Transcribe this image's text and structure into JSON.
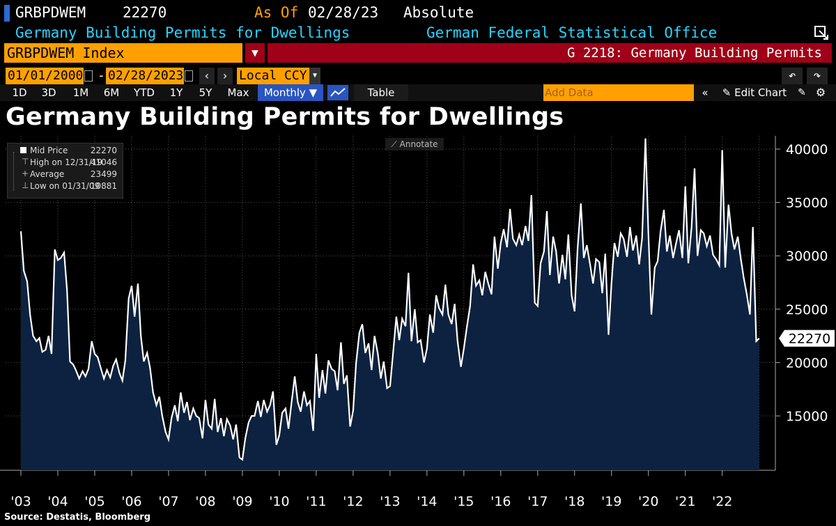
{
  "header": {
    "ticker": "GRBPDWEM",
    "value": "22270",
    "as_of_label": "As Of",
    "as_of_date": "02/28/23",
    "mode": "Absolute",
    "series_name": "Germany Building Permits for Dwellings",
    "source_agency": "German Federal Statistical Office",
    "index_name": "GRBPDWEM Index",
    "chart_id": "G 2218: Germany Building Permits"
  },
  "controls": {
    "start_date": "01/01/2000",
    "end_date": "02/28/2023",
    "currency": "Local CCY",
    "periods": [
      "1D",
      "3D",
      "1M",
      "6M",
      "YTD",
      "1Y",
      "5Y",
      "Max"
    ],
    "frequency": "Monthly ▼",
    "table_label": "Table",
    "add_data_placeholder": "Add Data",
    "edit_chart_label": "Edit Chart"
  },
  "legend": {
    "items": [
      {
        "label": "Mid Price",
        "value": "22270"
      },
      {
        "label": "High on 12/31/19",
        "value": "41046"
      },
      {
        "label": "Average",
        "value": "23499"
      },
      {
        "label": "Low on 01/31/09",
        "value": "10881"
      }
    ]
  },
  "annotate_label": "Annotate",
  "source": "Source: Destatis, Bloomberg",
  "colors": {
    "area": "#0d2240",
    "line": "#ffffff",
    "orange": "#ffa000",
    "red_bar": "#a00018",
    "cyan": "#28d4ff",
    "last_value_bg": "#ffffff"
  },
  "chart_data": {
    "type": "area",
    "title": "Germany Building Permits for Dwellings",
    "ylim": [
      10000,
      41500
    ],
    "yticks": [
      15000,
      20000,
      25000,
      30000,
      35000,
      40000
    ],
    "ytick_labels": [
      "15000",
      "20000",
      "25000",
      "30000",
      "35000",
      "40000"
    ],
    "xlim": [
      2003.0,
      2023.1
    ],
    "xticks": [
      2003,
      2004,
      2005,
      2006,
      2007,
      2008,
      2009,
      2010,
      2011,
      2012,
      2013,
      2014,
      2015,
      2016,
      2017,
      2018,
      2019,
      2020,
      2021,
      2022
    ],
    "xtick_labels": [
      "'03",
      "'04",
      "'05",
      "'06",
      "'07",
      "'08",
      "'09",
      "'10",
      "'11",
      "'12",
      "'13",
      "'14",
      "'15",
      "'16",
      "'17",
      "'18",
      "'19",
      "'20",
      "'21",
      "'22"
    ],
    "last_value_label": "22270",
    "series": [
      {
        "name": "Germany Building Permits for Dwellings",
        "points": [
          [
            2003.0,
            32300
          ],
          [
            2003.08,
            28600
          ],
          [
            2003.17,
            27600
          ],
          [
            2003.25,
            24500
          ],
          [
            2003.33,
            22500
          ],
          [
            2003.42,
            22000
          ],
          [
            2003.5,
            22300
          ],
          [
            2003.58,
            21000
          ],
          [
            2003.67,
            21200
          ],
          [
            2003.75,
            22500
          ],
          [
            2003.83,
            20800
          ],
          [
            2003.92,
            30600
          ],
          [
            2004.0,
            29600
          ],
          [
            2004.08,
            29800
          ],
          [
            2004.17,
            30300
          ],
          [
            2004.25,
            26800
          ],
          [
            2004.33,
            20100
          ],
          [
            2004.42,
            19800
          ],
          [
            2004.5,
            19200
          ],
          [
            2004.58,
            18500
          ],
          [
            2004.67,
            19200
          ],
          [
            2004.75,
            18700
          ],
          [
            2004.83,
            19400
          ],
          [
            2004.92,
            22000
          ],
          [
            2005.0,
            20800
          ],
          [
            2005.08,
            20500
          ],
          [
            2005.17,
            19400
          ],
          [
            2005.25,
            18500
          ],
          [
            2005.33,
            19300
          ],
          [
            2005.42,
            18600
          ],
          [
            2005.5,
            19700
          ],
          [
            2005.58,
            20300
          ],
          [
            2005.67,
            19000
          ],
          [
            2005.75,
            18300
          ],
          [
            2005.83,
            20200
          ],
          [
            2005.92,
            26000
          ],
          [
            2006.0,
            27200
          ],
          [
            2006.08,
            24300
          ],
          [
            2006.17,
            27400
          ],
          [
            2006.25,
            22500
          ],
          [
            2006.33,
            20100
          ],
          [
            2006.42,
            20900
          ],
          [
            2006.5,
            19500
          ],
          [
            2006.58,
            17200
          ],
          [
            2006.67,
            16000
          ],
          [
            2006.75,
            16800
          ],
          [
            2006.83,
            15000
          ],
          [
            2006.92,
            13500
          ],
          [
            2007.0,
            12800
          ],
          [
            2007.08,
            14800
          ],
          [
            2007.17,
            16000
          ],
          [
            2007.25,
            14500
          ],
          [
            2007.33,
            17200
          ],
          [
            2007.42,
            15300
          ],
          [
            2007.5,
            16300
          ],
          [
            2007.58,
            14600
          ],
          [
            2007.67,
            15700
          ],
          [
            2007.75,
            15000
          ],
          [
            2007.83,
            14800
          ],
          [
            2007.92,
            12900
          ],
          [
            2008.0,
            16500
          ],
          [
            2008.08,
            14200
          ],
          [
            2008.17,
            13800
          ],
          [
            2008.25,
            16600
          ],
          [
            2008.33,
            13500
          ],
          [
            2008.42,
            14800
          ],
          [
            2008.5,
            13100
          ],
          [
            2008.58,
            14700
          ],
          [
            2008.67,
            14100
          ],
          [
            2008.75,
            12800
          ],
          [
            2008.83,
            14200
          ],
          [
            2008.92,
            11100
          ],
          [
            2009.0,
            10900
          ],
          [
            2009.08,
            12900
          ],
          [
            2009.17,
            14400
          ],
          [
            2009.25,
            15000
          ],
          [
            2009.33,
            15000
          ],
          [
            2009.42,
            16400
          ],
          [
            2009.5,
            14900
          ],
          [
            2009.58,
            16500
          ],
          [
            2009.67,
            15400
          ],
          [
            2009.75,
            16000
          ],
          [
            2009.83,
            17300
          ],
          [
            2009.92,
            12300
          ],
          [
            2010.0,
            13200
          ],
          [
            2010.08,
            15300
          ],
          [
            2010.17,
            15700
          ],
          [
            2010.25,
            13800
          ],
          [
            2010.33,
            16200
          ],
          [
            2010.42,
            18700
          ],
          [
            2010.5,
            16300
          ],
          [
            2010.58,
            15400
          ],
          [
            2010.67,
            17300
          ],
          [
            2010.75,
            16000
          ],
          [
            2010.83,
            16400
          ],
          [
            2010.92,
            13600
          ],
          [
            2011.0,
            20800
          ],
          [
            2011.08,
            16700
          ],
          [
            2011.17,
            19300
          ],
          [
            2011.25,
            17100
          ],
          [
            2011.33,
            20200
          ],
          [
            2011.42,
            19400
          ],
          [
            2011.5,
            19200
          ],
          [
            2011.58,
            17400
          ],
          [
            2011.67,
            21900
          ],
          [
            2011.75,
            18000
          ],
          [
            2011.83,
            18800
          ],
          [
            2011.92,
            14000
          ],
          [
            2012.0,
            15500
          ],
          [
            2012.08,
            19900
          ],
          [
            2012.17,
            22800
          ],
          [
            2012.25,
            23600
          ],
          [
            2012.33,
            20900
          ],
          [
            2012.42,
            21800
          ],
          [
            2012.5,
            19300
          ],
          [
            2012.58,
            22500
          ],
          [
            2012.67,
            20800
          ],
          [
            2012.75,
            18500
          ],
          [
            2012.83,
            20100
          ],
          [
            2012.92,
            17600
          ],
          [
            2013.0,
            17800
          ],
          [
            2013.08,
            20800
          ],
          [
            2013.17,
            24300
          ],
          [
            2013.25,
            22100
          ],
          [
            2013.33,
            24100
          ],
          [
            2013.42,
            23400
          ],
          [
            2013.5,
            28400
          ],
          [
            2013.58,
            22000
          ],
          [
            2013.67,
            25000
          ],
          [
            2013.75,
            21900
          ],
          [
            2013.83,
            22100
          ],
          [
            2013.92,
            20000
          ],
          [
            2014.0,
            21300
          ],
          [
            2014.08,
            24500
          ],
          [
            2014.17,
            22800
          ],
          [
            2014.25,
            26300
          ],
          [
            2014.33,
            25100
          ],
          [
            2014.42,
            24500
          ],
          [
            2014.5,
            27300
          ],
          [
            2014.58,
            24500
          ],
          [
            2014.67,
            23600
          ],
          [
            2014.75,
            25500
          ],
          [
            2014.83,
            22000
          ],
          [
            2014.92,
            19600
          ],
          [
            2015.0,
            21300
          ],
          [
            2015.08,
            23300
          ],
          [
            2015.17,
            25300
          ],
          [
            2015.25,
            29200
          ],
          [
            2015.33,
            27200
          ],
          [
            2015.42,
            27700
          ],
          [
            2015.5,
            26300
          ],
          [
            2015.58,
            28500
          ],
          [
            2015.67,
            27300
          ],
          [
            2015.75,
            26400
          ],
          [
            2015.83,
            31800
          ],
          [
            2015.92,
            28800
          ],
          [
            2016.0,
            31200
          ],
          [
            2016.08,
            32500
          ],
          [
            2016.17,
            30800
          ],
          [
            2016.25,
            34400
          ],
          [
            2016.33,
            31600
          ],
          [
            2016.42,
            31000
          ],
          [
            2016.5,
            32000
          ],
          [
            2016.58,
            31000
          ],
          [
            2016.67,
            32800
          ],
          [
            2016.75,
            31400
          ],
          [
            2016.83,
            35700
          ],
          [
            2016.92,
            25600
          ],
          [
            2017.0,
            25300
          ],
          [
            2017.08,
            29300
          ],
          [
            2017.17,
            30400
          ],
          [
            2017.25,
            34200
          ],
          [
            2017.33,
            28200
          ],
          [
            2017.42,
            31800
          ],
          [
            2017.5,
            30400
          ],
          [
            2017.58,
            27400
          ],
          [
            2017.67,
            30100
          ],
          [
            2017.75,
            27800
          ],
          [
            2017.83,
            32000
          ],
          [
            2017.92,
            26300
          ],
          [
            2018.0,
            24800
          ],
          [
            2018.08,
            30600
          ],
          [
            2018.17,
            34900
          ],
          [
            2018.25,
            29800
          ],
          [
            2018.33,
            31000
          ],
          [
            2018.42,
            29200
          ],
          [
            2018.5,
            27400
          ],
          [
            2018.58,
            29700
          ],
          [
            2018.67,
            29400
          ],
          [
            2018.75,
            26500
          ],
          [
            2018.83,
            30200
          ],
          [
            2018.92,
            22600
          ],
          [
            2019.0,
            27500
          ],
          [
            2019.08,
            31200
          ],
          [
            2019.17,
            29900
          ],
          [
            2019.25,
            32100
          ],
          [
            2019.33,
            31600
          ],
          [
            2019.42,
            29900
          ],
          [
            2019.5,
            32700
          ],
          [
            2019.58,
            30500
          ],
          [
            2019.67,
            31900
          ],
          [
            2019.75,
            29200
          ],
          [
            2019.83,
            31700
          ],
          [
            2019.92,
            41000
          ],
          [
            2020.0,
            32100
          ],
          [
            2020.08,
            24500
          ],
          [
            2020.17,
            28900
          ],
          [
            2020.25,
            29500
          ],
          [
            2020.33,
            32300
          ],
          [
            2020.42,
            34300
          ],
          [
            2020.5,
            30400
          ],
          [
            2020.58,
            31900
          ],
          [
            2020.67,
            29800
          ],
          [
            2020.75,
            31200
          ],
          [
            2020.83,
            32400
          ],
          [
            2020.92,
            29800
          ],
          [
            2021.0,
            36500
          ],
          [
            2021.08,
            29300
          ],
          [
            2021.17,
            32700
          ],
          [
            2021.25,
            38200
          ],
          [
            2021.33,
            30000
          ],
          [
            2021.42,
            32400
          ],
          [
            2021.5,
            32100
          ],
          [
            2021.58,
            30900
          ],
          [
            2021.67,
            31900
          ],
          [
            2021.75,
            30100
          ],
          [
            2021.83,
            29700
          ],
          [
            2021.92,
            29100
          ],
          [
            2022.0,
            39900
          ],
          [
            2022.08,
            28900
          ],
          [
            2022.17,
            34800
          ],
          [
            2022.25,
            32100
          ],
          [
            2022.33,
            30600
          ],
          [
            2022.42,
            31800
          ],
          [
            2022.5,
            29800
          ],
          [
            2022.58,
            28000
          ],
          [
            2022.67,
            26300
          ],
          [
            2022.75,
            24500
          ],
          [
            2022.83,
            32700
          ],
          [
            2022.92,
            22000
          ],
          [
            2023.0,
            22270
          ]
        ]
      }
    ]
  }
}
